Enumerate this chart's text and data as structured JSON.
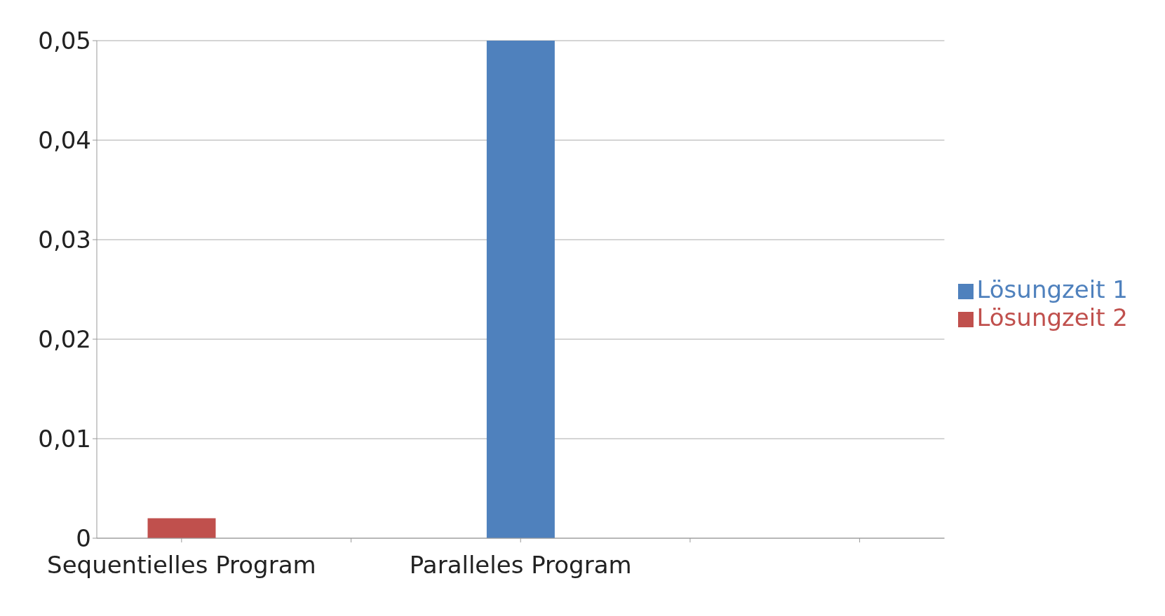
{
  "chart_data": {
    "type": "bar",
    "stacked": true,
    "categories": [
      "Sequentielles Program",
      null,
      "Paralleles Program",
      null,
      null
    ],
    "series": [
      {
        "name": "Lösungzeit 2",
        "color": "#c0504d",
        "values": [
          0.002,
          null,
          null,
          null,
          null
        ]
      },
      {
        "name": "Lösungzeit 1",
        "color": "#4f81bd",
        "values": [
          null,
          null,
          0.05,
          null,
          null
        ]
      }
    ],
    "ylim": [
      0,
      0.05
    ],
    "yticks": [
      0,
      {
        "value": 0.01,
        "label": "0,01"
      },
      {
        "value": 0.02,
        "label": "0,02"
      },
      {
        "value": 0.03,
        "label": "0,03"
      },
      {
        "value": 0.04,
        "label": "0,04"
      },
      {
        "value": 0.05,
        "label": "0,05"
      }
    ],
    "grid": "y",
    "legend": "right"
  }
}
